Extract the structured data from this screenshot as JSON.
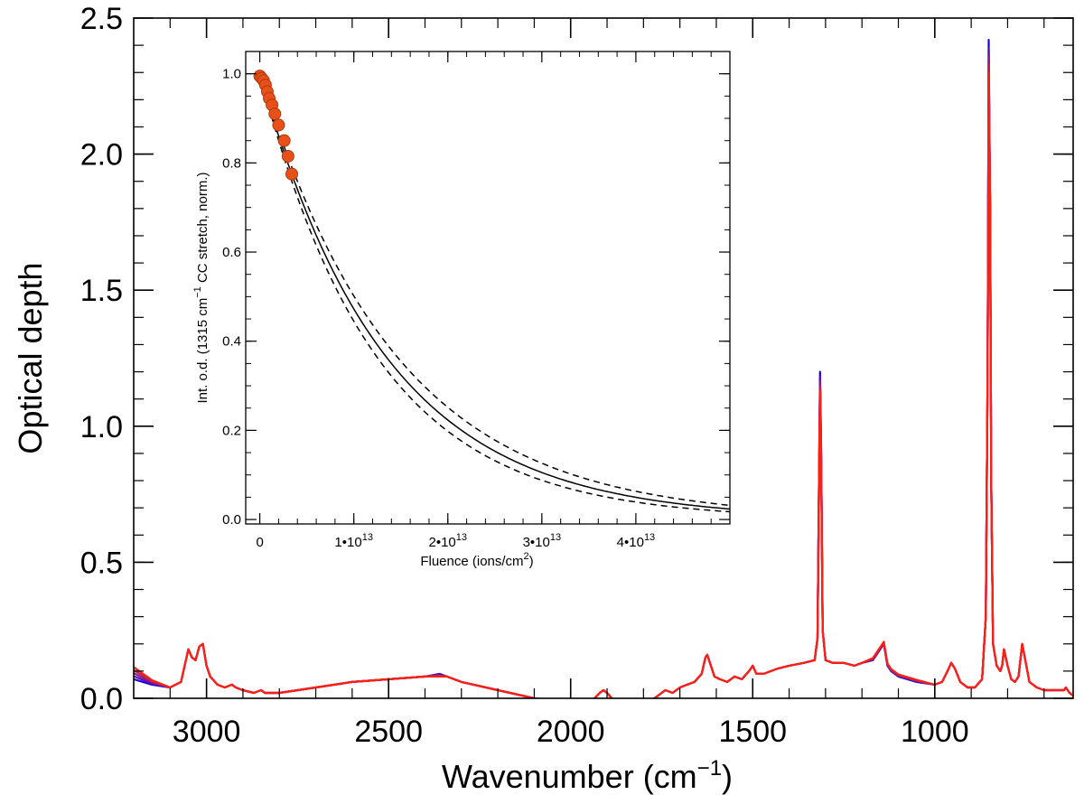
{
  "chart_data": [
    {
      "type": "line",
      "role": "main",
      "xlabel": "Wavenumber (cm",
      "xlabel_sup": "−1",
      "xlabel_close": ")",
      "ylabel": "Optical depth",
      "xlim": [
        3200,
        620
      ],
      "ylim": [
        0.0,
        2.5
      ],
      "x_reversed": true,
      "xticks": [
        {
          "value": 3000,
          "label": "3000"
        },
        {
          "value": 2500,
          "label": "2500"
        },
        {
          "value": 2000,
          "label": "2000"
        },
        {
          "value": 1500,
          "label": "1500"
        },
        {
          "value": 1000,
          "label": "1000"
        }
      ],
      "yticks": [
        {
          "value": 0.0,
          "label": "0.0"
        },
        {
          "value": 0.5,
          "label": "0.5"
        },
        {
          "value": 1.0,
          "label": "1.0"
        },
        {
          "value": 1.5,
          "label": "1.5"
        },
        {
          "value": 2.0,
          "label": "2.0"
        },
        {
          "value": 2.5,
          "label": "2.5"
        }
      ],
      "series_colors": [
        "#1a00e0",
        "#5a10b0",
        "#8c1a88",
        "#c02050",
        "#ff2010"
      ],
      "spectrum": {
        "x": [
          3200,
          3150,
          3100,
          3070,
          3050,
          3040,
          3030,
          3020,
          3010,
          3000,
          2990,
          2970,
          2950,
          2930,
          2920,
          2900,
          2870,
          2850,
          2840,
          2800,
          2700,
          2600,
          2500,
          2400,
          2360,
          2340,
          2300,
          2200,
          2100,
          2000,
          1950,
          1920,
          1910,
          1900,
          1880,
          1850,
          1820,
          1800,
          1780,
          1760,
          1740,
          1720,
          1700,
          1680,
          1660,
          1640,
          1630,
          1625,
          1615,
          1605,
          1590,
          1570,
          1550,
          1530,
          1510,
          1500,
          1490,
          1470,
          1450,
          1430,
          1400,
          1360,
          1330,
          1322,
          1318,
          1315,
          1312,
          1308,
          1300,
          1280,
          1250,
          1220,
          1200,
          1170,
          1150,
          1140,
          1135,
          1130,
          1120,
          1100,
          1050,
          1000,
          980,
          965,
          955,
          945,
          930,
          910,
          890,
          870,
          860,
          855,
          852,
          848,
          845,
          840,
          830,
          820,
          815,
          810,
          800,
          790,
          780,
          770,
          760,
          740,
          720,
          700,
          680,
          660,
          645,
          640,
          630,
          620
        ],
        "y": [
          0.07,
          0.05,
          0.04,
          0.06,
          0.18,
          0.15,
          0.14,
          0.19,
          0.2,
          0.12,
          0.08,
          0.05,
          0.04,
          0.05,
          0.04,
          0.03,
          0.02,
          0.03,
          0.02,
          0.02,
          0.04,
          0.06,
          0.07,
          0.08,
          0.09,
          0.08,
          0.06,
          0.03,
          0.0,
          -0.02,
          -0.02,
          0.02,
          0.03,
          0.02,
          -0.01,
          -0.03,
          -0.02,
          -0.01,
          -0.01,
          0.01,
          0.03,
          0.02,
          0.04,
          0.05,
          0.06,
          0.09,
          0.15,
          0.16,
          0.12,
          0.08,
          0.07,
          0.06,
          0.08,
          0.07,
          0.1,
          0.12,
          0.09,
          0.09,
          0.1,
          0.11,
          0.12,
          0.13,
          0.14,
          0.22,
          0.8,
          1.2,
          0.9,
          0.25,
          0.14,
          0.13,
          0.13,
          0.12,
          0.13,
          0.14,
          0.18,
          0.2,
          0.16,
          0.12,
          0.1,
          0.08,
          0.06,
          0.05,
          0.06,
          0.1,
          0.13,
          0.11,
          0.06,
          0.04,
          0.04,
          0.07,
          0.3,
          1.2,
          2.42,
          1.8,
          0.8,
          0.2,
          0.12,
          0.1,
          0.12,
          0.18,
          0.12,
          0.07,
          0.06,
          0.08,
          0.2,
          0.06,
          0.04,
          0.03,
          0.03,
          0.03,
          0.03,
          0.04,
          0.02,
          0.01
        ]
      }
    },
    {
      "type": "scatter",
      "role": "inset",
      "xlabel": "Fluence (ions/cm",
      "xlabel_sup": "2",
      "xlabel_close": ")",
      "ylabel": "Int. o.d. (1315 cm",
      "ylabel_sup": "−1",
      "ylabel_close": " CC stretch, norm.)",
      "xlim": [
        -1500000000000.0,
        50000000000000.0
      ],
      "ylim": [
        -0.01,
        1.05
      ],
      "xticks": [
        {
          "value": 0,
          "label": "0",
          "exp": ""
        },
        {
          "value": 10000000000000.0,
          "label": "1•10",
          "exp": "13"
        },
        {
          "value": 20000000000000.0,
          "label": "2•10",
          "exp": "13"
        },
        {
          "value": 30000000000000.0,
          "label": "3•10",
          "exp": "13"
        },
        {
          "value": 40000000000000.0,
          "label": "4•10",
          "exp": "13"
        }
      ],
      "yticks": [
        {
          "value": 0.0,
          "label": "0.0"
        },
        {
          "value": 0.2,
          "label": "0.2"
        },
        {
          "value": 0.4,
          "label": "0.4"
        },
        {
          "value": 0.6,
          "label": "0.6"
        },
        {
          "value": 0.8,
          "label": "0.8"
        },
        {
          "value": 1.0,
          "label": "1.0"
        }
      ],
      "points": {
        "x": [
          0,
          200000000000.0,
          400000000000.0,
          600000000000.0,
          800000000000.0,
          1000000000000.0,
          1300000000000.0,
          1600000000000.0,
          2000000000000.0,
          2600000000000.0,
          3000000000000.0,
          3400000000000.0
        ],
        "y": [
          0.995,
          0.99,
          0.985,
          0.975,
          0.96,
          0.945,
          0.93,
          0.91,
          0.885,
          0.85,
          0.815,
          0.775
        ]
      },
      "fit": {
        "type": "exponential",
        "cross_section": 7.5e-14
      },
      "fit_bounds": {
        "lower_cross_section": 8.1e-14,
        "upper_cross_section": 6.9e-14
      },
      "marker_color": "#e8501a"
    }
  ]
}
